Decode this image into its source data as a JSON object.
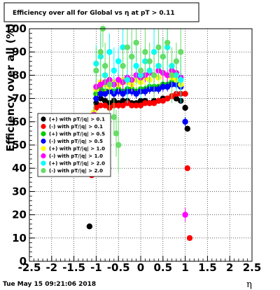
{
  "chart_data": {
    "type": "scatter",
    "title": "Efficiency over all for Global vs   η at pT > 0.11",
    "ylabel": "Efficiency over all (%)",
    "xlabel": "η",
    "xlim": [
      -2.5,
      2.5
    ],
    "ylim": [
      0,
      100
    ],
    "x_ticks": [
      "-2.5",
      "-2",
      "-1.5",
      "-1",
      "-0.5",
      "0",
      "0.5",
      "1",
      "1.5",
      "2",
      "2.5"
    ],
    "y_ticks": [
      "0",
      "10",
      "20",
      "30",
      "40",
      "50",
      "60",
      "70",
      "80",
      "90",
      "100"
    ],
    "grid": true,
    "legend_position": "left-middle",
    "timestamp": "Tue May 15 09:21:06 2018",
    "series": [
      {
        "name": "(+) with pT/|q| > 0.1",
        "color": "#000000",
        "x": [
          -1.15,
          -1.1,
          -1.05,
          -1.0,
          -0.9,
          -0.8,
          -0.7,
          -0.6,
          -0.5,
          -0.4,
          -0.3,
          -0.2,
          -0.1,
          0.0,
          0.1,
          0.2,
          0.3,
          0.4,
          0.5,
          0.6,
          0.7,
          0.8,
          0.9,
          1.0,
          1.05
        ],
        "y": [
          15,
          38,
          62,
          68,
          70,
          69,
          68,
          69,
          68,
          69,
          69,
          68,
          68,
          69,
          69,
          68,
          69,
          69,
          70,
          70,
          71,
          70,
          69,
          66,
          57
        ]
      },
      {
        "name": "(-) with pT/|q| > 0.1",
        "color": "#ff0000",
        "x": [
          -1.1,
          -1.05,
          -1.0,
          -0.9,
          -0.8,
          -0.7,
          -0.6,
          -0.5,
          -0.4,
          -0.3,
          -0.2,
          -0.1,
          0.0,
          0.1,
          0.2,
          0.3,
          0.4,
          0.5,
          0.6,
          0.7,
          0.8,
          0.9,
          1.0,
          1.05,
          1.1
        ],
        "y": [
          37,
          60,
          66,
          67,
          67,
          66,
          67,
          67,
          67,
          68,
          67,
          67,
          67,
          68,
          68,
          68,
          69,
          69,
          70,
          71,
          72,
          72,
          72,
          40,
          10
        ]
      },
      {
        "name": "(+) with pT/|q| > 0.5",
        "color": "#00cc00",
        "x": [
          -1.05,
          -1.0,
          -0.9,
          -0.8,
          -0.7,
          -0.6,
          -0.5,
          -0.4,
          -0.3,
          -0.2,
          -0.1,
          0.0,
          0.1,
          0.2,
          0.3,
          0.4,
          0.5,
          0.6,
          0.7,
          0.8,
          0.9,
          1.0
        ],
        "y": [
          64,
          72,
          74,
          73,
          74,
          73,
          74,
          73,
          74,
          74,
          73,
          74,
          74,
          75,
          75,
          75,
          76,
          76,
          77,
          77,
          76,
          60
        ]
      },
      {
        "name": "(-) with pT/|q| > 0.5",
        "color": "#0000ff",
        "x": [
          -1.05,
          -1.0,
          -0.9,
          -0.8,
          -0.7,
          -0.6,
          -0.5,
          -0.4,
          -0.3,
          -0.2,
          -0.1,
          0.0,
          0.1,
          0.2,
          0.3,
          0.4,
          0.5,
          0.6,
          0.7,
          0.8,
          0.9,
          1.0
        ],
        "y": [
          62,
          70,
          72,
          72,
          73,
          72,
          73,
          72,
          73,
          73,
          72,
          73,
          73,
          74,
          74,
          74,
          75,
          75,
          76,
          76,
          75,
          60
        ]
      },
      {
        "name": "(+) with pT/|q| > 1.0",
        "color": "#ffff00",
        "x": [
          -1.05,
          -1.0,
          -0.9,
          -0.8,
          -0.7,
          -0.6,
          -0.5,
          -0.4,
          -0.3,
          -0.2,
          -0.1,
          0.0,
          0.1,
          0.2,
          0.3,
          0.4,
          0.5,
          0.6,
          0.7,
          0.8,
          0.9
        ],
        "y": [
          64,
          74,
          77,
          76,
          75,
          77,
          76,
          78,
          77,
          76,
          78,
          77,
          79,
          78,
          80,
          79,
          81,
          80,
          79,
          78,
          76
        ]
      },
      {
        "name": "(-) with pT/|q| > 1.0",
        "color": "#ff00ff",
        "x": [
          -1.05,
          -1.0,
          -0.9,
          -0.8,
          -0.7,
          -0.6,
          -0.5,
          -0.4,
          -0.3,
          -0.2,
          -0.1,
          0.0,
          0.1,
          0.2,
          0.3,
          0.4,
          0.5,
          0.6,
          0.7,
          0.8,
          0.9,
          1.0
        ],
        "y": [
          63,
          75,
          76,
          77,
          78,
          76,
          78,
          77,
          79,
          78,
          80,
          79,
          80,
          81,
          80,
          82,
          81,
          80,
          82,
          81,
          79,
          20
        ]
      },
      {
        "name": "(+) with pT/|q| > 2.0",
        "color": "#00ffff",
        "x": [
          -1.05,
          -1.0,
          -0.9,
          -0.8,
          -0.7,
          -0.6,
          -0.5,
          -0.4,
          -0.3,
          -0.2,
          -0.1,
          0.0,
          0.1,
          0.2,
          0.3,
          0.4,
          0.5,
          0.6,
          0.7,
          0.8,
          0.9
        ],
        "y": [
          55,
          85,
          88,
          80,
          90,
          82,
          86,
          92,
          78,
          88,
          84,
          80,
          86,
          82,
          90,
          84,
          88,
          92,
          84,
          80,
          78
        ]
      },
      {
        "name": "(-) with pT/|q| > 2.0",
        "color": "#66dd66",
        "x": [
          -1.05,
          -1.0,
          -0.9,
          -0.85,
          -0.8,
          -0.7,
          -0.6,
          -0.55,
          -0.5,
          -0.4,
          -0.3,
          -0.2,
          -0.1,
          0.0,
          0.1,
          0.2,
          0.3,
          0.4,
          0.5,
          0.6,
          0.7,
          0.8,
          0.9
        ],
        "y": [
          60,
          82,
          90,
          100,
          84,
          76,
          62,
          55,
          50,
          84,
          92,
          88,
          94,
          82,
          90,
          86,
          80,
          92,
          88,
          94,
          80,
          86,
          90
        ]
      }
    ]
  }
}
